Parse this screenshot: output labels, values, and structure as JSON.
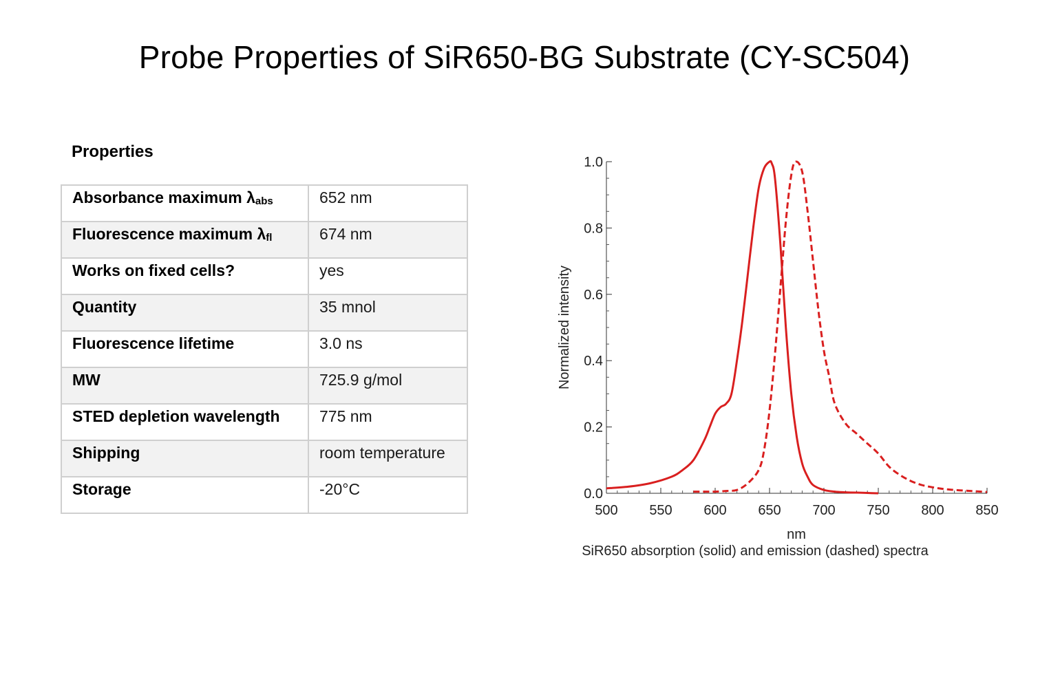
{
  "page": {
    "title": "Probe Properties of SiR650-BG Substrate (CY-SC504)"
  },
  "properties": {
    "heading": "Properties",
    "rows": [
      {
        "label": "Absorbance maximum λ",
        "label_sub": "abs",
        "value": "652 nm"
      },
      {
        "label": "Fluorescence maximum λ",
        "label_sub": "fl",
        "value": "674 nm"
      },
      {
        "label": "Works on fixed cells?",
        "label_sub": "",
        "value": "yes"
      },
      {
        "label": "Quantity",
        "label_sub": "",
        "value": "35 mnol"
      },
      {
        "label": "Fluorescence lifetime",
        "label_sub": "",
        "value": "3.0 ns"
      },
      {
        "label": "MW",
        "label_sub": "",
        "value": "725.9 g/mol"
      },
      {
        "label": "STED depletion wavelength",
        "label_sub": "",
        "value": "775 nm"
      },
      {
        "label": "Shipping",
        "label_sub": "",
        "value": "room temperature"
      },
      {
        "label": "Storage",
        "label_sub": "",
        "value": "-20°C"
      }
    ]
  },
  "chart_data": {
    "type": "line",
    "title": "",
    "caption": "SiR650 absorption (solid) and emission (dashed) spectra",
    "xlabel": "nm",
    "ylabel": "Normalized  intensity",
    "xlim": [
      500,
      850
    ],
    "ylim": [
      0,
      1.0
    ],
    "x_ticks": [
      500,
      550,
      600,
      650,
      700,
      750,
      800,
      850
    ],
    "y_ticks": [
      0.0,
      0.2,
      0.4,
      0.6,
      0.8,
      1.0
    ],
    "y_tick_labels": [
      "0.0",
      "0.2",
      "0.4",
      "0.6",
      "0.8",
      "1.0"
    ],
    "grid": false,
    "color": "#d91f1f",
    "series": [
      {
        "style": "solid",
        "x": [
          500,
          520,
          540,
          560,
          570,
          580,
          590,
          595,
          600,
          605,
          610,
          615,
          620,
          625,
          630,
          635,
          640,
          645,
          650,
          652,
          655,
          660,
          665,
          670,
          675,
          680,
          685,
          690,
          700,
          710,
          720,
          730,
          740,
          750
        ],
        "y": [
          0.015,
          0.02,
          0.03,
          0.05,
          0.07,
          0.1,
          0.16,
          0.2,
          0.24,
          0.26,
          0.27,
          0.3,
          0.4,
          0.52,
          0.66,
          0.8,
          0.92,
          0.98,
          1.0,
          0.995,
          0.95,
          0.75,
          0.5,
          0.3,
          0.17,
          0.09,
          0.05,
          0.025,
          0.01,
          0.005,
          0.003,
          0.002,
          0.001,
          0.0
        ]
      },
      {
        "style": "dashed",
        "x": [
          580,
          600,
          610,
          620,
          630,
          640,
          645,
          650,
          655,
          660,
          665,
          670,
          674,
          680,
          685,
          690,
          695,
          700,
          705,
          710,
          720,
          730,
          740,
          750,
          760,
          770,
          780,
          790,
          800,
          810,
          820,
          830,
          840,
          850
        ],
        "y": [
          0.005,
          0.005,
          0.007,
          0.01,
          0.03,
          0.07,
          0.13,
          0.25,
          0.42,
          0.62,
          0.82,
          0.96,
          1.0,
          0.97,
          0.85,
          0.7,
          0.55,
          0.43,
          0.35,
          0.27,
          0.21,
          0.18,
          0.15,
          0.12,
          0.08,
          0.055,
          0.037,
          0.025,
          0.018,
          0.013,
          0.01,
          0.008,
          0.006,
          0.004
        ]
      }
    ]
  }
}
